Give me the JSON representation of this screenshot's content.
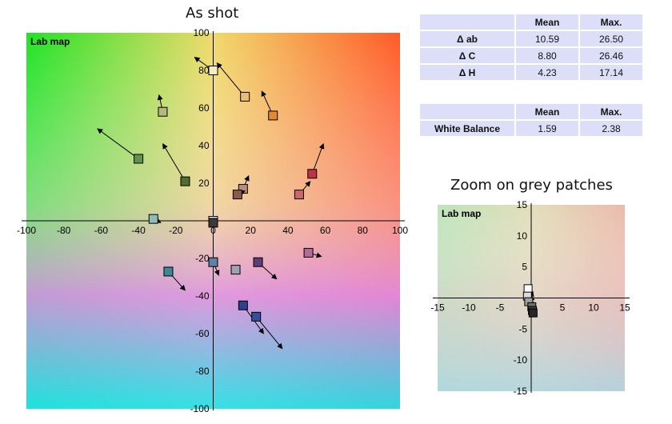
{
  "main_title": "As shot",
  "zoom_title": "Zoom on grey patches",
  "chart_data": [
    {
      "type": "scatter",
      "title": "As shot",
      "plot_label": "Lab map",
      "xlim": [
        -100,
        100
      ],
      "ylim": [
        -100,
        100
      ],
      "xticks": [
        -100,
        -80,
        -60,
        -40,
        -20,
        0,
        20,
        40,
        60,
        80,
        100
      ],
      "yticks": [
        -100,
        -80,
        -60,
        -40,
        -20,
        0,
        20,
        40,
        60,
        80,
        100
      ],
      "grid": false,
      "patches": [
        {
          "x": 0,
          "y": 80,
          "tx": -10,
          "ty": 87,
          "color": "#f6eebd"
        },
        {
          "x": 17,
          "y": 66,
          "tx": 2,
          "ty": 84,
          "color": "#edbc6e"
        },
        {
          "x": 32,
          "y": 56,
          "tx": 26,
          "ty": 69,
          "color": "#e3892e"
        },
        {
          "x": -27,
          "y": 58,
          "tx": -29,
          "ty": 67,
          "color": "#b7b785"
        },
        {
          "x": -40,
          "y": 33,
          "tx": -62,
          "ty": 49,
          "color": "#60944d"
        },
        {
          "x": -15,
          "y": 21,
          "tx": -27,
          "ty": 41,
          "color": "#4f6c31"
        },
        {
          "x": 53,
          "y": 25,
          "tx": 59,
          "ty": 41,
          "color": "#c03345"
        },
        {
          "x": 46,
          "y": 14,
          "tx": 52,
          "ty": 21,
          "color": "#c86868"
        },
        {
          "x": 16,
          "y": 17,
          "tx": 19,
          "ty": 24,
          "color": "#bc8e7a"
        },
        {
          "x": 13,
          "y": 14,
          "tx": 17,
          "ty": 16,
          "color": "#8e5b4b"
        },
        {
          "x": -32,
          "y": 1,
          "tx": -28,
          "ty": -1,
          "color": "#90bcb4"
        },
        {
          "x": 0,
          "y": -22,
          "tx": 3,
          "ty": -29,
          "color": "#5e81a4"
        },
        {
          "x": 12,
          "y": -26,
          "tx": 12,
          "ty": -26,
          "color": "#a2a1b4"
        },
        {
          "x": 24,
          "y": -22,
          "tx": 34,
          "ty": -31,
          "color": "#5c3e79"
        },
        {
          "x": 51,
          "y": -17,
          "tx": 58,
          "ty": -19,
          "color": "#b36b9a"
        },
        {
          "x": -24,
          "y": -27,
          "tx": -15,
          "ty": -37,
          "color": "#3d8897"
        },
        {
          "x": 16,
          "y": -45,
          "tx": 27,
          "ty": -60,
          "color": "#2f3f8e"
        },
        {
          "x": 23,
          "y": -51,
          "tx": 37,
          "ty": -68,
          "color": "#3a4d9c"
        },
        {
          "x": 0,
          "y": 0,
          "tx": 0,
          "ty": 0,
          "color": "#ffffff"
        },
        {
          "x": 0,
          "y": -1,
          "tx": 0,
          "ty": -1,
          "color": "#3a3a3a"
        }
      ]
    },
    {
      "type": "scatter",
      "title": "Zoom on grey patches",
      "plot_label": "Lab map",
      "xlim": [
        -15,
        15
      ],
      "ylim": [
        -15,
        15
      ],
      "xticks": [
        -15,
        -10,
        -5,
        0,
        5,
        10,
        15
      ],
      "yticks": [
        -15,
        -10,
        -5,
        0,
        5,
        10,
        15
      ],
      "grid": false,
      "patches": [
        {
          "x": -0.5,
          "y": 1.5,
          "tx": 0.4,
          "ty": 0.2,
          "color": "#ffffff"
        },
        {
          "x": -0.6,
          "y": 0.3,
          "tx": 0.5,
          "ty": -0.3,
          "color": "#dcdcdc"
        },
        {
          "x": -0.4,
          "y": -0.6,
          "tx": 0.6,
          "ty": -0.9,
          "color": "#a0a0a0"
        },
        {
          "x": 0.1,
          "y": -1.4,
          "tx": 0.7,
          "ty": -1.5,
          "color": "#6e6e6e"
        },
        {
          "x": 0.2,
          "y": -2.0,
          "tx": 0.8,
          "ty": -2.2,
          "color": "#404040"
        },
        {
          "x": 0.3,
          "y": -2.4,
          "tx": 0.9,
          "ty": -2.6,
          "color": "#262626"
        }
      ]
    }
  ],
  "stats": {
    "delta_headers": [
      "",
      "Mean",
      "Max."
    ],
    "delta_rows": [
      {
        "label": "Δ ab",
        "mean": "10.59",
        "max": "26.50"
      },
      {
        "label": "Δ C",
        "mean": "8.80",
        "max": "26.46"
      },
      {
        "label": "Δ H",
        "mean": "4.23",
        "max": "17.14"
      }
    ],
    "wb_headers": [
      "",
      "Mean",
      "Max."
    ],
    "wb_rows": [
      {
        "label": "White Balance",
        "mean": "1.59",
        "max": "2.38"
      }
    ]
  }
}
